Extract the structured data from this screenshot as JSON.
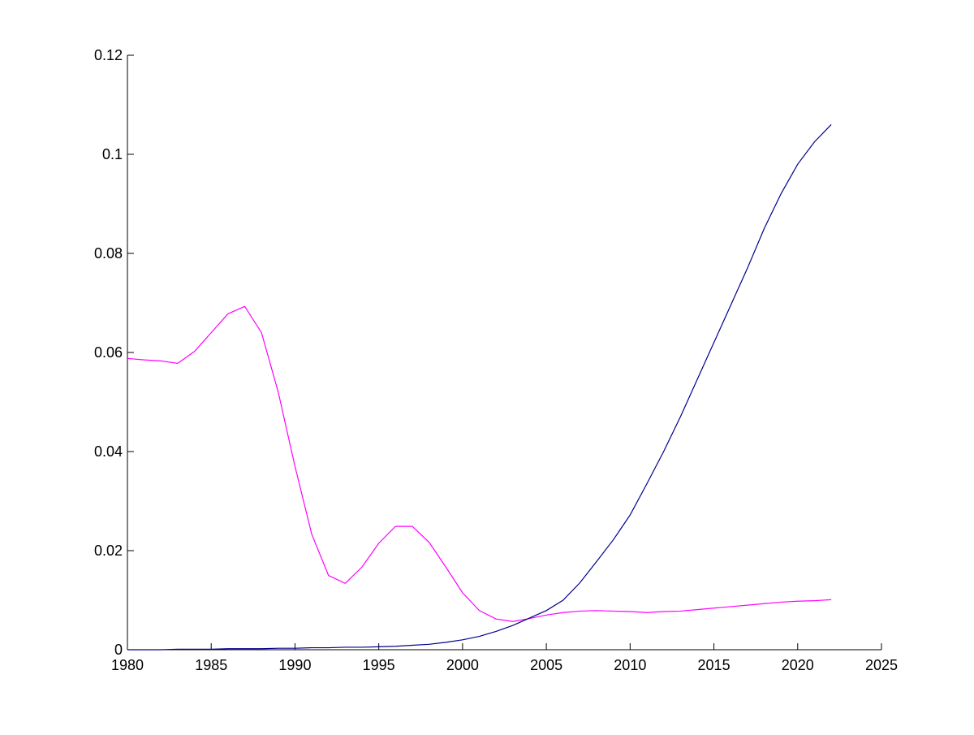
{
  "chart_data": {
    "type": "line",
    "x": [
      1980,
      1981,
      1982,
      1983,
      1984,
      1985,
      1986,
      1987,
      1988,
      1989,
      1990,
      1991,
      1992,
      1993,
      1994,
      1995,
      1996,
      1997,
      1998,
      1999,
      2000,
      2001,
      2002,
      2003,
      2004,
      2005,
      2006,
      2007,
      2008,
      2009,
      2010,
      2011,
      2012,
      2013,
      2014,
      2015,
      2016,
      2017,
      2018,
      2019,
      2020,
      2021,
      2022
    ],
    "series": [
      {
        "color": "#ff00ff",
        "values": [
          0.0588,
          0.0585,
          0.0583,
          0.0578,
          0.0602,
          0.064,
          0.0678,
          0.0693,
          0.064,
          0.052,
          0.037,
          0.0233,
          0.015,
          0.0134,
          0.0167,
          0.0215,
          0.0249,
          0.0249,
          0.0217,
          0.0167,
          0.0115,
          0.0079,
          0.0062,
          0.0057,
          0.0063,
          0.007,
          0.0075,
          0.0078,
          0.0079,
          0.0078,
          0.0077,
          0.0075,
          0.0077,
          0.0078,
          0.0081,
          0.0084,
          0.0087,
          0.009,
          0.0093,
          0.0096,
          0.0098,
          0.0099,
          0.0101
        ]
      },
      {
        "color": "#00008b",
        "values": [
          0,
          0,
          0,
          0.0001,
          0.0001,
          0.0001,
          0.0002,
          0.0002,
          0.0002,
          0.0003,
          0.0003,
          0.0004,
          0.0004,
          0.0005,
          0.0005,
          0.0006,
          0.0007,
          0.0009,
          0.0011,
          0.0015,
          0.002,
          0.0027,
          0.0037,
          0.0049,
          0.0064,
          0.0079,
          0.01,
          0.0135,
          0.0178,
          0.0222,
          0.0272,
          0.0335,
          0.04,
          0.047,
          0.0545,
          0.062,
          0.0695,
          0.077,
          0.085,
          0.092,
          0.098,
          0.1025,
          0.106
        ]
      }
    ],
    "xlim": [
      1980,
      2025
    ],
    "xticks": [
      1980,
      1985,
      1990,
      1995,
      2000,
      2005,
      2010,
      2015,
      2020,
      2025
    ],
    "ylim": [
      0,
      0.12
    ],
    "yticks": [
      0,
      0.02,
      0.04,
      0.06,
      0.08,
      0.1,
      0.12
    ]
  }
}
